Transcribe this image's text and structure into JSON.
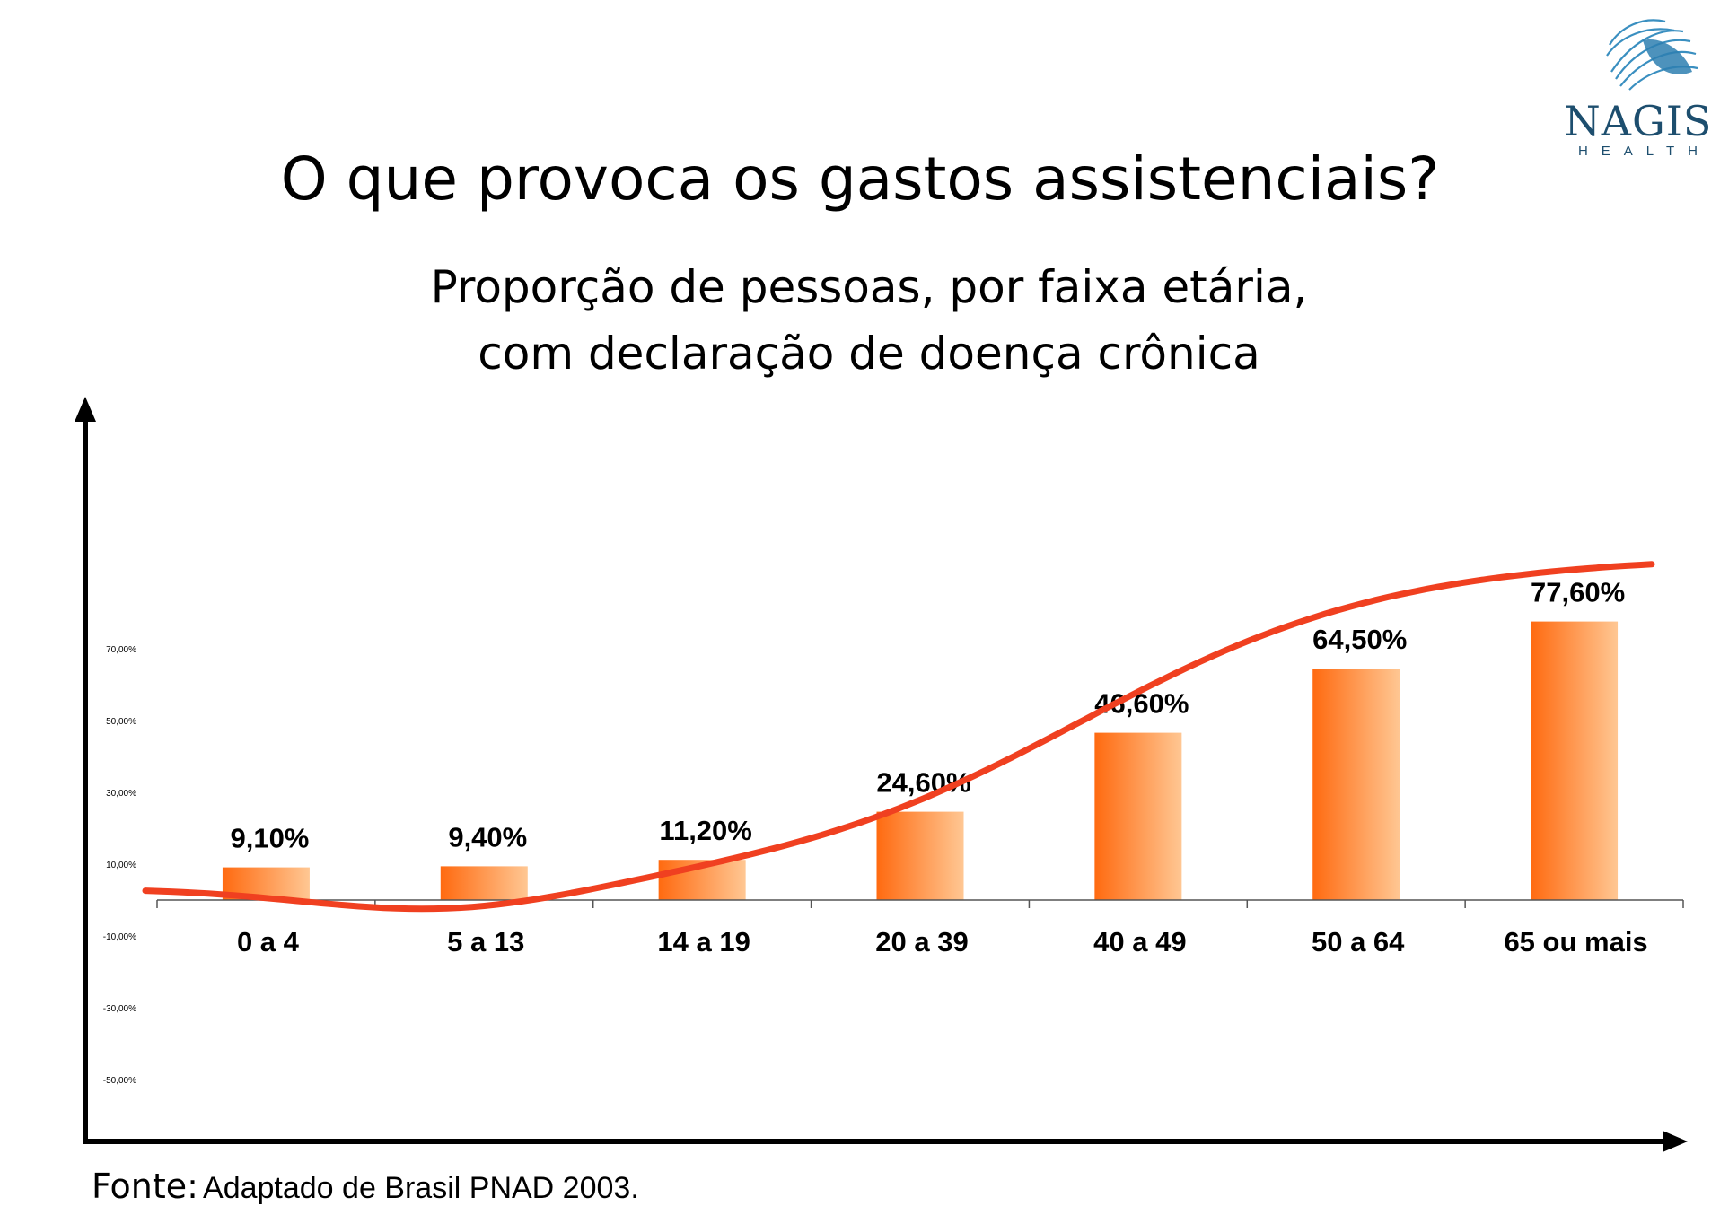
{
  "logo": {
    "name": "NAGIS",
    "sub": "HEALTH",
    "icon": "nagis-logo-icon",
    "color": "#1d4e6e"
  },
  "title": "O que provoca os gastos assistenciais?",
  "subtitle": [
    "Proporção de pessoas, por faixa etária,",
    "com declaração de doença crônica"
  ],
  "source": {
    "label": "Fonte:",
    "text": "Adaptado de Brasil PNAD 2003."
  },
  "chart_data": {
    "type": "bar",
    "categories": [
      "0 a 4",
      "5 a 13",
      "14 a 19",
      "20 a 39",
      "40 a 49",
      "50 a 64",
      "65 ou mais"
    ],
    "values": [
      9.1,
      9.4,
      11.2,
      24.6,
      46.6,
      64.5,
      77.6
    ],
    "data_labels": [
      "9,10%",
      "9,40%",
      "11,20%",
      "24,60%",
      "46,60%",
      "64,50%",
      "77,60%"
    ],
    "y_ticks": [
      {
        "value": 70,
        "label": "70,00%"
      },
      {
        "value": 50,
        "label": "50,00%"
      },
      {
        "value": 30,
        "label": "30,00%"
      },
      {
        "value": 10,
        "label": "10,00%"
      },
      {
        "value": -10,
        "label": "-10,00%"
      },
      {
        "value": -30,
        "label": "-30,00%"
      },
      {
        "value": -50,
        "label": "-50,00%"
      }
    ],
    "ylim": [
      -65,
      135
    ],
    "trend_curve": {
      "color": "#f04020",
      "shape": "sigmoid"
    },
    "bar_color": "#ff7a22",
    "xlabel": "",
    "ylabel": "",
    "grid": false
  }
}
